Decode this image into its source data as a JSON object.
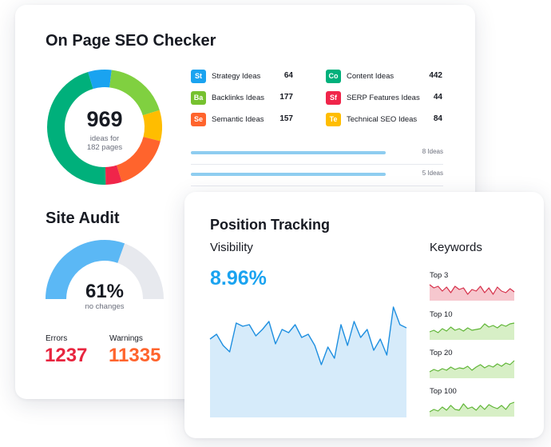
{
  "seo": {
    "title": "On Page SEO Checker",
    "total": "969",
    "subtitle_line1": "ideas for",
    "subtitle_line2": "182 pages",
    "donut_segments": [
      {
        "name": "Content Ideas",
        "value": 442,
        "color": "#00b07b"
      },
      {
        "name": "Strategy Ideas",
        "value": 64,
        "color": "#1aa3f0"
      },
      {
        "name": "Backlinks Ideas",
        "value": 177,
        "color": "#80d040"
      },
      {
        "name": "Technical SEO Ideas",
        "value": 84,
        "color": "#ffbd00"
      },
      {
        "name": "Semantic Ideas",
        "value": 157,
        "color": "#ff642d"
      },
      {
        "name": "SERP Features Ideas",
        "value": 44,
        "color": "#f0254a"
      }
    ],
    "ideas": [
      {
        "abbr": "St",
        "label": "Strategy Ideas",
        "count": "64",
        "color": "#1aa3f0"
      },
      {
        "abbr": "Ba",
        "label": "Backlinks Ideas",
        "count": "177",
        "color": "#76c12f"
      },
      {
        "abbr": "Se",
        "label": "Semantic Ideas",
        "count": "157",
        "color": "#ff642d"
      },
      {
        "abbr": "Co",
        "label": "Content Ideas",
        "count": "442",
        "color": "#00b07b"
      },
      {
        "abbr": "Sf",
        "label": "SERP Features Ideas",
        "count": "44",
        "color": "#f0254a"
      },
      {
        "abbr": "Te",
        "label": "Technical SEO Ideas",
        "count": "84",
        "color": "#ffbd00"
      }
    ],
    "bars": [
      {
        "label": "8 Ideas"
      },
      {
        "label": "5 Ideas"
      }
    ]
  },
  "audit": {
    "title": "Site Audit",
    "percent": "61%",
    "percent_value": 61,
    "sub": "no changes",
    "errors_label": "Errors",
    "errors_value": "1237",
    "warnings_label": "Warnings",
    "warnings_value": "11335",
    "colors": {
      "gauge": "#5bb8f5",
      "track": "#e7e9ee",
      "errors": "#e8253f",
      "warnings": "#ff642d"
    }
  },
  "tracking": {
    "title": "Position Tracking",
    "visibility_label": "Visibility",
    "visibility_value": "8.96%",
    "keywords_label": "Keywords",
    "keyword_groups": [
      {
        "label": "Top 3",
        "color": "#d6304a",
        "fill": "#f6c7ce"
      },
      {
        "label": "Top 10",
        "color": "#5fb536",
        "fill": "#d7efc6"
      },
      {
        "label": "Top 20",
        "color": "#5fb536",
        "fill": "#d7efc6"
      },
      {
        "label": "Top 100",
        "color": "#5fb536",
        "fill": "#d7efc6"
      }
    ],
    "colors": {
      "accent": "#1aa3f0",
      "area": "#d6ebfa",
      "line": "#1e8fe0"
    }
  }
}
